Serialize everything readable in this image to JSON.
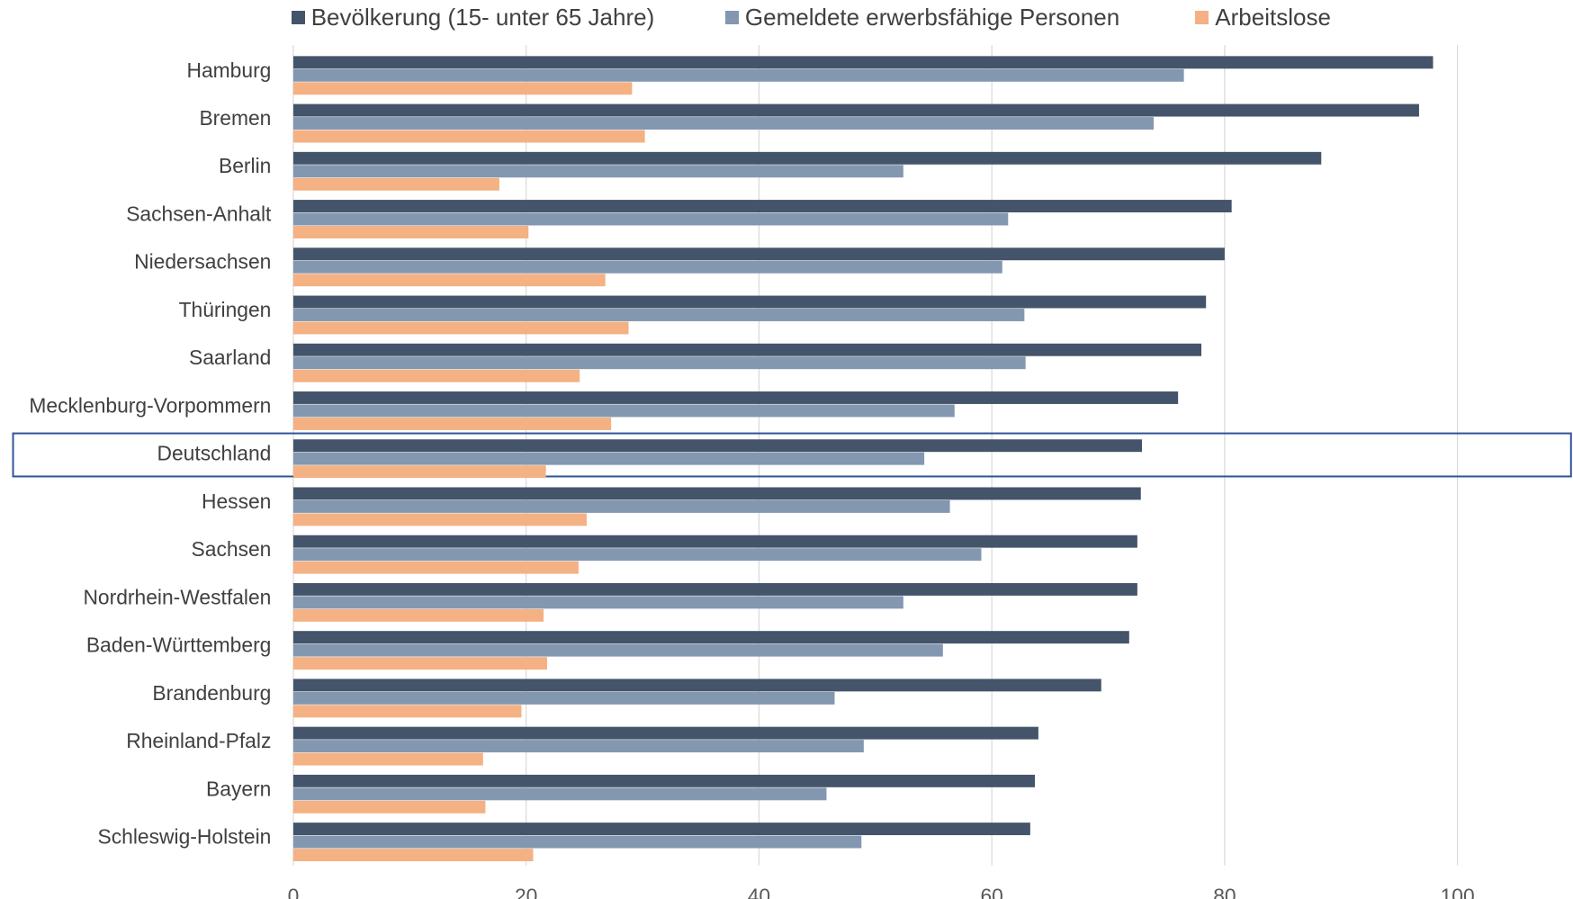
{
  "chart_data": {
    "type": "bar",
    "orientation": "horizontal",
    "categories": [
      "Hamburg",
      "Bremen",
      "Berlin",
      "Sachsen-Anhalt",
      "Niedersachsen",
      "Thüringen",
      "Saarland",
      "Mecklenburg-Vorpommern",
      "Deutschland",
      "Hessen",
      "Sachsen",
      "Nordrhein-Westfalen",
      "Baden-Württemberg",
      "Brandenburg",
      "Rheinland-Pfalz",
      "Bayern",
      "Schleswig-Holstein"
    ],
    "series": [
      {
        "name": "Bevölkerung (15- unter 65 Jahre)",
        "color": "#44546a",
        "values": [
          97.9,
          96.7,
          88.3,
          80.6,
          80.0,
          78.4,
          78.0,
          76.0,
          72.9,
          72.8,
          72.5,
          72.5,
          71.8,
          69.4,
          64.0,
          63.7,
          63.3
        ]
      },
      {
        "name": "Gemeldete erwerbsfähige Personen",
        "color": "#8497b0",
        "values": [
          76.5,
          73.9,
          52.4,
          61.4,
          60.9,
          62.8,
          62.9,
          56.8,
          54.2,
          56.4,
          59.1,
          52.4,
          55.8,
          46.5,
          49.0,
          45.8,
          48.8
        ]
      },
      {
        "name": "Arbeitslose",
        "color": "#f4b183",
        "values": [
          29.1,
          30.2,
          17.7,
          20.2,
          26.8,
          28.8,
          24.6,
          27.3,
          21.7,
          25.2,
          24.5,
          21.5,
          21.8,
          19.6,
          16.3,
          16.5,
          20.6
        ]
      }
    ],
    "xlim": [
      0,
      100
    ],
    "xticks": [
      0,
      20,
      40,
      60,
      80,
      100
    ],
    "grid": "vertical",
    "legend_position": "top",
    "highlighted_category": "Deutschland",
    "title": "",
    "xlabel": "",
    "ylabel": ""
  }
}
